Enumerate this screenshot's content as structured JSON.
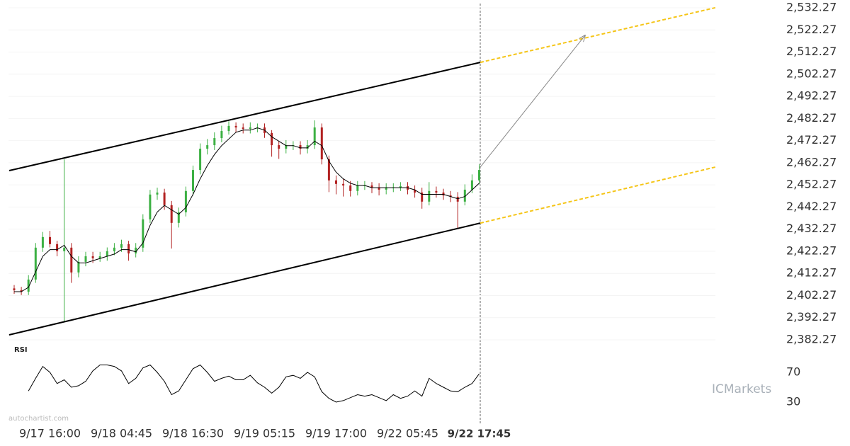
{
  "chart_data": {
    "type": "candlestick",
    "categories": [
      null,
      null,
      null,
      null,
      null,
      "9/17 16:00",
      null,
      null,
      null,
      null,
      null,
      null,
      null,
      null,
      null,
      "9/18 04:45",
      null,
      null,
      null,
      null,
      null,
      null,
      null,
      null,
      null,
      "9/18 16:30",
      null,
      null,
      null,
      null,
      null,
      null,
      null,
      null,
      null,
      "9/19 05:15",
      null,
      null,
      null,
      null,
      null,
      null,
      null,
      null,
      null,
      "9/19 17:00",
      null,
      null,
      null,
      null,
      null,
      null,
      null,
      null,
      null,
      "9/22 05:45",
      null,
      null,
      null,
      null,
      null,
      null,
      null,
      null,
      null,
      "9/22 17:45"
    ],
    "open": [
      2405.5,
      2404.7,
      2404.0,
      2409.5,
      2423.9,
      2428.7,
      2425.5,
      2422.3,
      2423.9,
      2412.7,
      2417.5,
      2420.0,
      2419.1,
      2420.0,
      2422.3,
      2423.9,
      2425.5,
      2421.3,
      2423.9,
      2436.7,
      2447.9,
      2448.8,
      2443.1,
      2435.1,
      2439.9,
      2449.5,
      2459.0,
      2468.6,
      2470.2,
      2473.4,
      2476.6,
      2478.9,
      2478.2,
      2477.6,
      2478.2,
      2478.2,
      2475.7,
      2470.2,
      2468.6,
      2470.2,
      2470.2,
      2468.6,
      2470.2,
      2478.2,
      2463.8,
      2454.3,
      2452.7,
      2452.0,
      2449.5,
      2452.0,
      2452.0,
      2451.1,
      2450.1,
      2451.1,
      2451.1,
      2451.7,
      2450.1,
      2448.8,
      2444.7,
      2449.5,
      2448.8,
      2447.5,
      2446.9,
      2444.7,
      2450.1,
      2454.3
    ],
    "high": [
      2407.0,
      2406.2,
      2411.5,
      2426.0,
      2431.0,
      2431.5,
      2427.0,
      2463.8,
      2426.0,
      2420.0,
      2422.0,
      2422.0,
      2422.0,
      2424.0,
      2426.0,
      2427.5,
      2427.0,
      2426.0,
      2439.0,
      2450.0,
      2451.0,
      2450.5,
      2445.0,
      2442.0,
      2451.5,
      2461.0,
      2471.0,
      2473.0,
      2476.0,
      2479.0,
      2481.0,
      2480.5,
      2480.0,
      2480.5,
      2480.0,
      2480.0,
      2477.0,
      2472.0,
      2472.5,
      2472.0,
      2472.0,
      2472.5,
      2481.4,
      2480.0,
      2465.5,
      2456.5,
      2455.0,
      2454.0,
      2454.0,
      2454.0,
      2453.5,
      2453.0,
      2453.0,
      2453.0,
      2453.5,
      2453.5,
      2452.0,
      2451.0,
      2453.5,
      2451.5,
      2450.5,
      2449.5,
      2449.0,
      2452.5,
      2457.0,
      2461.5
    ],
    "low": [
      2403.0,
      2402.5,
      2402.5,
      2408.0,
      2422.0,
      2424.0,
      2420.0,
      2390.3,
      2408.0,
      2410.5,
      2415.5,
      2417.0,
      2417.5,
      2418.0,
      2420.5,
      2422.0,
      2418.0,
      2419.5,
      2422.0,
      2435.0,
      2445.5,
      2441.0,
      2423.5,
      2433.0,
      2438.0,
      2447.5,
      2457.0,
      2466.0,
      2468.0,
      2471.5,
      2475.0,
      2476.0,
      2475.5,
      2475.5,
      2476.0,
      2473.5,
      2465.0,
      2464.0,
      2466.5,
      2468.0,
      2466.0,
      2466.5,
      2468.5,
      2461.5,
      2449.0,
      2448.0,
      2447.0,
      2447.0,
      2447.5,
      2450.0,
      2448.5,
      2447.5,
      2448.0,
      2449.0,
      2449.5,
      2448.0,
      2446.5,
      2441.5,
      2443.0,
      2446.5,
      2445.5,
      2444.5,
      2432.8,
      2443.0,
      2448.5,
      2452.5
    ],
    "close": [
      2404.7,
      2404.0,
      2409.5,
      2423.9,
      2428.7,
      2425.5,
      2422.3,
      2423.9,
      2412.7,
      2417.5,
      2420.0,
      2419.1,
      2420.0,
      2422.3,
      2423.9,
      2425.5,
      2421.3,
      2423.9,
      2436.7,
      2447.9,
      2448.8,
      2443.1,
      2435.1,
      2439.9,
      2449.5,
      2459.0,
      2468.6,
      2470.2,
      2473.4,
      2476.6,
      2478.9,
      2478.2,
      2477.6,
      2478.2,
      2478.2,
      2475.7,
      2470.2,
      2468.6,
      2470.2,
      2470.2,
      2468.6,
      2470.2,
      2478.2,
      2463.8,
      2454.3,
      2452.7,
      2452.0,
      2449.5,
      2452.0,
      2452.0,
      2451.1,
      2450.1,
      2451.1,
      2451.1,
      2451.7,
      2450.1,
      2448.8,
      2444.7,
      2449.5,
      2448.8,
      2447.5,
      2446.9,
      2444.7,
      2450.1,
      2454.3,
      2459.0
    ],
    "up_color": "#3cb043",
    "down_color": "#b22222",
    "ma": {
      "color": "#000000",
      "values": [
        2404.0,
        2404.0,
        2406,
        2413,
        2420,
        2423,
        2423,
        2425,
        2420,
        2417,
        2417,
        2418,
        2419,
        2420,
        2421,
        2423,
        2423,
        2422,
        2426,
        2434,
        2440,
        2443,
        2441,
        2439,
        2442,
        2448,
        2455,
        2461,
        2466,
        2470,
        2473,
        2476,
        2477,
        2477,
        2478,
        2477,
        2474,
        2472,
        2470,
        2470,
        2469,
        2469,
        2472,
        2470,
        2463,
        2458,
        2455,
        2453,
        2452,
        2452,
        2451,
        2451,
        2451,
        2451,
        2451,
        2451,
        2450,
        2448,
        2448,
        2448,
        2448,
        2447,
        2446,
        2447,
        2450,
        2453
      ]
    },
    "ylim": [
      2382.27,
      2532.27
    ],
    "yticks": [
      {
        "value": 2532.27,
        "label": "2,532.27"
      },
      {
        "value": 2522.27,
        "label": "2,522.27"
      },
      {
        "value": 2512.27,
        "label": "2,512.27"
      },
      {
        "value": 2502.27,
        "label": "2,502.27"
      },
      {
        "value": 2492.27,
        "label": "2,492.27"
      },
      {
        "value": 2482.27,
        "label": "2,482.27"
      },
      {
        "value": 2472.27,
        "label": "2,472.27"
      },
      {
        "value": 2462.27,
        "label": "2,462.27"
      },
      {
        "value": 2452.27,
        "label": "2,452.27"
      },
      {
        "value": 2442.27,
        "label": "2,442.27"
      },
      {
        "value": 2432.27,
        "label": "2,432.27"
      },
      {
        "value": 2422.27,
        "label": "2,422.27"
      },
      {
        "value": 2412.27,
        "label": "2,412.27"
      },
      {
        "value": 2402.27,
        "label": "2,402.27"
      },
      {
        "value": 2392.27,
        "label": "2,392.27"
      },
      {
        "value": 2382.27,
        "label": "2,382.27"
      }
    ],
    "grid": true,
    "lines": [
      {
        "color": "#000000",
        "dashed": false,
        "x": [
          -0.7,
          65.15
        ],
        "y": [
          2458.7,
          2507.6
        ]
      },
      {
        "color": "#000000",
        "dashed": false,
        "x": [
          -0.7,
          65.15
        ],
        "y": [
          2384.5,
          2435.0
        ]
      },
      {
        "color": "#f5c518",
        "dashed": true,
        "x": [
          65.15,
          98
        ],
        "y": [
          2507.6,
          2532.3
        ]
      },
      {
        "color": "#f5c518",
        "dashed": true,
        "x": [
          65.15,
          98
        ],
        "y": [
          2435.0,
          2460.3
        ]
      },
      {
        "color": "#888888",
        "dashed": false,
        "arrow": true,
        "x": [
          65.15,
          79.8
        ],
        "y": [
          2460.3,
          2519.8
        ]
      }
    ],
    "rsi": {
      "title": "RSI",
      "ylim": [
        0,
        100
      ],
      "yticks": [
        30,
        70
      ],
      "values": [
        null,
        null,
        45,
        62,
        78,
        70,
        55,
        60,
        50,
        52,
        58,
        72,
        80,
        80,
        78,
        72,
        55,
        62,
        76,
        80,
        70,
        58,
        40,
        45,
        60,
        75,
        80,
        70,
        58,
        62,
        65,
        60,
        60,
        66,
        56,
        50,
        42,
        50,
        64,
        66,
        62,
        70,
        64,
        44,
        35,
        30,
        32,
        36,
        40,
        38,
        40,
        36,
        32,
        40,
        35,
        38,
        45,
        38,
        62,
        55,
        50,
        45,
        44,
        50,
        55,
        68
      ]
    },
    "source": "autochartist.com",
    "brand": "ICMarkets"
  }
}
